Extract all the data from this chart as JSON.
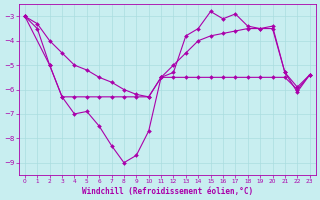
{
  "xlabel": "Windchill (Refroidissement éolien,°C)",
  "background_color": "#c8eef0",
  "grid_color": "#aadddf",
  "line_color": "#aa00aa",
  "xlim": [
    -0.5,
    23.5
  ],
  "ylim": [
    -9.5,
    -2.5
  ],
  "yticks": [
    -9,
    -8,
    -7,
    -6,
    -5,
    -4,
    -3
  ],
  "xticks": [
    0,
    1,
    2,
    3,
    4,
    5,
    6,
    7,
    8,
    9,
    10,
    11,
    12,
    13,
    14,
    15,
    16,
    17,
    18,
    19,
    20,
    21,
    22,
    23
  ],
  "line1_x": [
    0,
    1,
    2,
    3,
    4,
    5,
    6,
    7,
    8,
    9,
    10,
    11,
    12,
    13,
    14,
    15,
    16,
    17,
    18,
    19,
    20,
    21,
    22,
    23
  ],
  "line1_y": [
    -3.0,
    -3.5,
    -5.0,
    -6.3,
    -7.0,
    -6.9,
    -7.5,
    -8.3,
    -9.0,
    -8.7,
    -7.7,
    -5.5,
    -5.3,
    -3.8,
    -3.5,
    -2.8,
    -3.1,
    -2.9,
    -3.4,
    -3.5,
    -3.4,
    -5.3,
    -6.1,
    -5.4
  ],
  "line2_x": [
    0,
    2,
    3,
    4,
    5,
    6,
    7,
    8,
    9,
    10,
    11,
    12,
    13,
    14,
    15,
    16,
    17,
    18,
    19,
    20,
    21,
    22,
    23
  ],
  "line2_y": [
    -3.0,
    -5.0,
    -6.3,
    -6.3,
    -6.3,
    -6.3,
    -6.3,
    -6.3,
    -6.3,
    -6.3,
    -5.5,
    -5.5,
    -5.5,
    -5.5,
    -5.5,
    -5.5,
    -5.5,
    -5.5,
    -5.5,
    -5.5,
    -5.5,
    -6.0,
    -5.4
  ],
  "line3_x": [
    0,
    1,
    2,
    3,
    4,
    5,
    6,
    7,
    8,
    9,
    10,
    11,
    12,
    13,
    14,
    15,
    16,
    17,
    18,
    19,
    20,
    21,
    22,
    23
  ],
  "line3_y": [
    -3.0,
    -3.3,
    -4.0,
    -4.5,
    -5.0,
    -5.2,
    -5.5,
    -5.7,
    -6.0,
    -6.2,
    -6.3,
    -5.5,
    -5.0,
    -4.5,
    -4.0,
    -3.8,
    -3.7,
    -3.6,
    -3.5,
    -3.5,
    -3.5,
    -5.3,
    -5.9,
    -5.4
  ]
}
